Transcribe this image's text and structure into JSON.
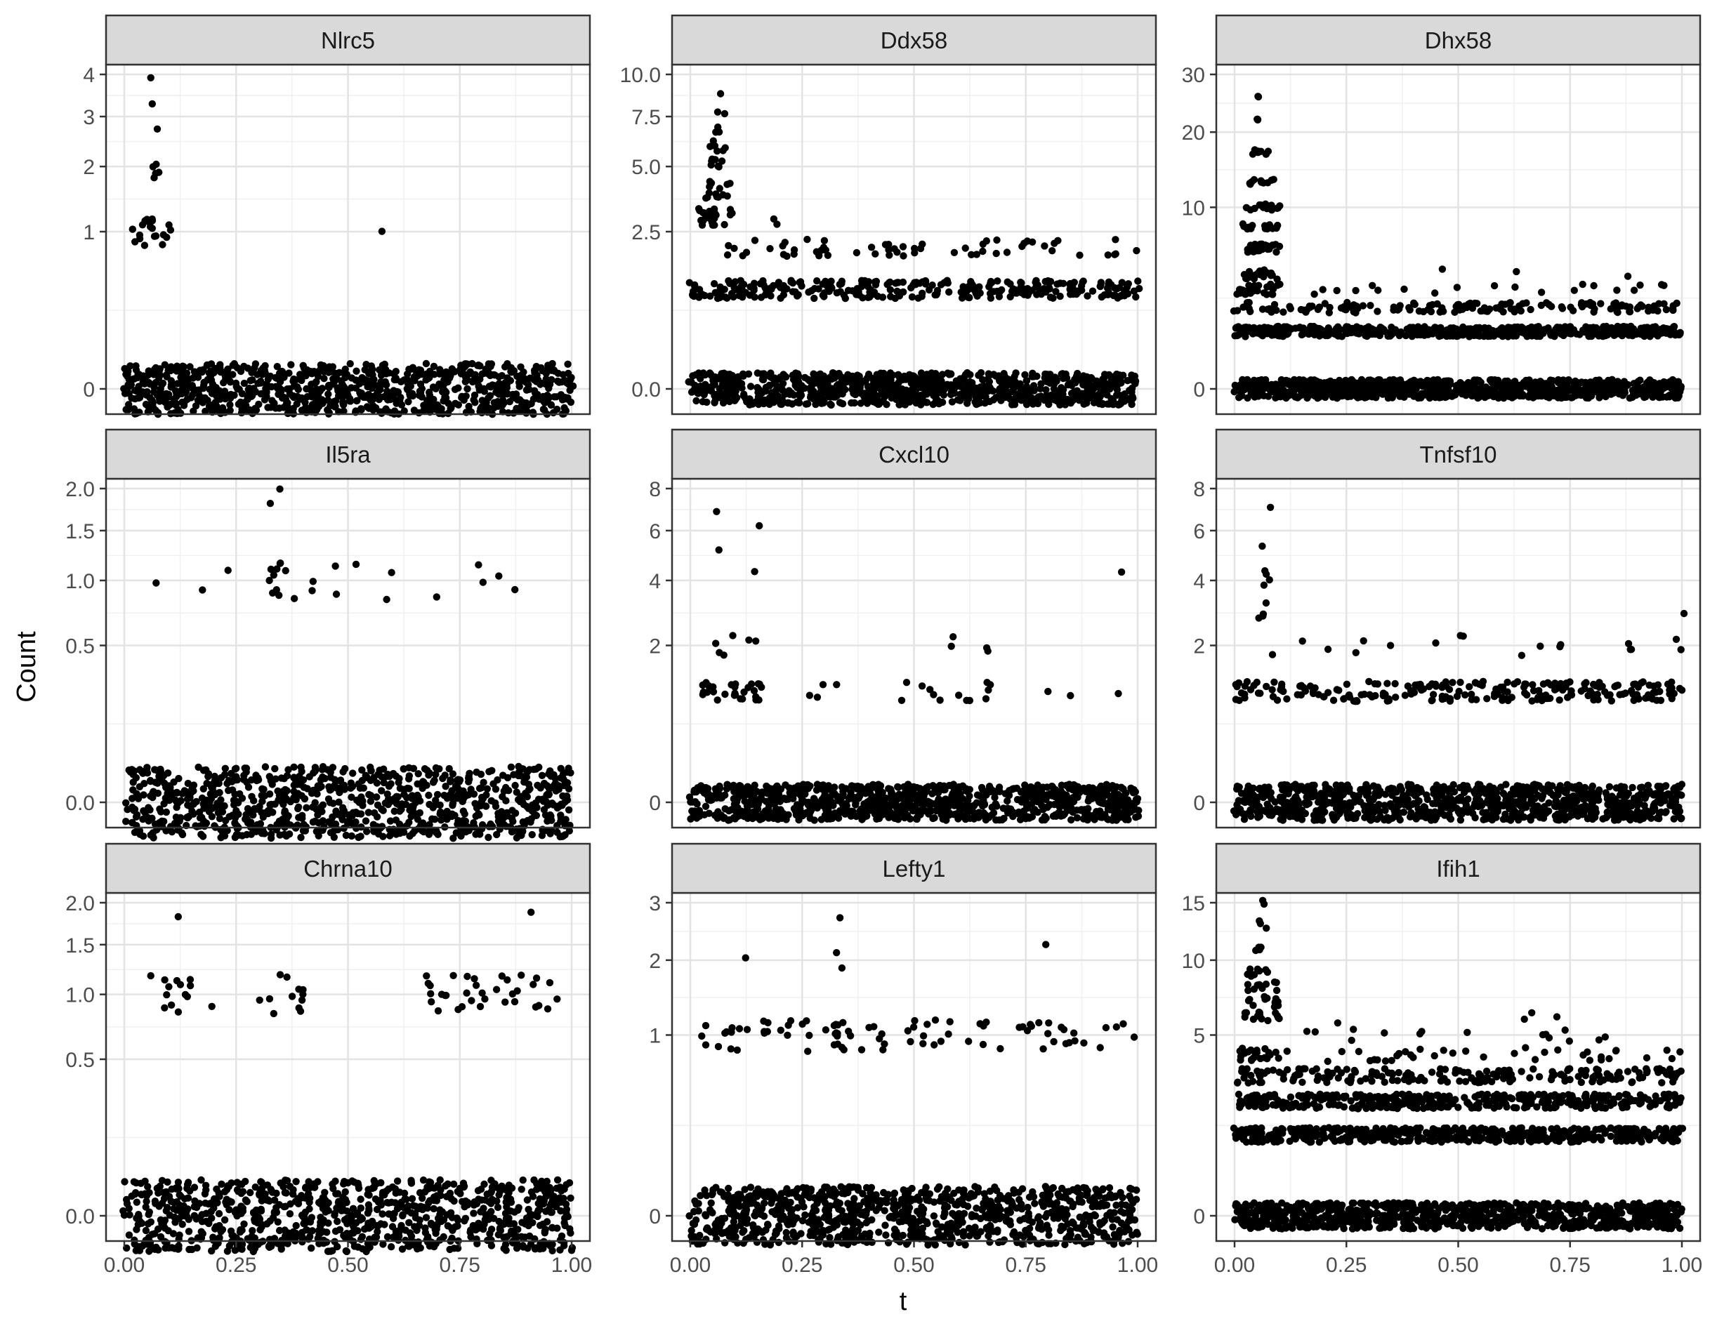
{
  "chart_data": {
    "type": "scatter",
    "xlabel": "t",
    "ylabel": "Count",
    "scale": "sqrt",
    "x_ticks": [
      "0.00",
      "0.25",
      "0.50",
      "0.75",
      "1.00"
    ],
    "x_tick_values": [
      0,
      0.25,
      0.5,
      0.75,
      1
    ],
    "grid": true,
    "panels": [
      {
        "title": "Nlrc5",
        "ylim": [
          0,
          4
        ],
        "y_ticks": [
          {
            "v": 0,
            "t": "0"
          },
          {
            "v": 1,
            "t": "1"
          },
          {
            "v": 2,
            "t": "2"
          },
          {
            "v": 3,
            "t": "3"
          },
          {
            "v": 4,
            "t": "4"
          }
        ],
        "levels": [
          {
            "y": 0,
            "from": 0.0,
            "to": 1.0,
            "n": 900
          },
          {
            "y": 1,
            "from": 0.02,
            "to": 0.1,
            "n": 20
          },
          {
            "y": 2,
            "from": 0.04,
            "to": 0.09,
            "n": 5
          },
          {
            "y": 3,
            "from": 0.06,
            "to": 0.07,
            "n": 2
          },
          {
            "y": 4,
            "from": 0.06,
            "to": 0.065,
            "n": 1
          },
          {
            "y": 1,
            "from": 0.58,
            "to": 0.58,
            "n": 1
          }
        ]
      },
      {
        "title": "Ddx58",
        "ylim": [
          0,
          10
        ],
        "y_ticks": [
          {
            "v": 0,
            "t": "0.0"
          },
          {
            "v": 2.5,
            "t": "2.5"
          },
          {
            "v": 5,
            "t": "5.0"
          },
          {
            "v": 7.5,
            "t": "7.5"
          },
          {
            "v": 10,
            "t": "10.0"
          }
        ],
        "levels": [
          {
            "y": 0,
            "from": 0.0,
            "to": 1.0,
            "n": 900
          },
          {
            "y": 1,
            "from": 0.0,
            "to": 1.0,
            "n": 300
          },
          {
            "y": 2,
            "from": 0.02,
            "to": 1.0,
            "n": 60
          },
          {
            "y": 3,
            "from": 0.02,
            "to": 0.1,
            "n": 25
          },
          {
            "y": 3,
            "from": 0.15,
            "to": 0.2,
            "n": 2
          },
          {
            "y": 4,
            "from": 0.03,
            "to": 0.09,
            "n": 15
          },
          {
            "y": 5,
            "from": 0.04,
            "to": 0.09,
            "n": 8
          },
          {
            "y": 6,
            "from": 0.04,
            "to": 0.09,
            "n": 6
          },
          {
            "y": 7,
            "from": 0.05,
            "to": 0.07,
            "n": 3
          },
          {
            "y": 8,
            "from": 0.06,
            "to": 0.08,
            "n": 2
          },
          {
            "y": 9,
            "from": 0.07,
            "to": 0.08,
            "n": 1
          }
        ]
      },
      {
        "title": "Dhx58",
        "ylim": [
          0,
          30
        ],
        "y_ticks": [
          {
            "v": 0,
            "t": "0"
          },
          {
            "v": 10,
            "t": "10"
          },
          {
            "v": 20,
            "t": "20"
          },
          {
            "v": 30,
            "t": "30"
          }
        ],
        "levels": [
          {
            "y": 0,
            "from": 0.0,
            "to": 1.0,
            "n": 900
          },
          {
            "y": 1,
            "from": 0.0,
            "to": 1.0,
            "n": 500
          },
          {
            "y": 2,
            "from": 0.0,
            "to": 1.0,
            "n": 150
          },
          {
            "y": 3,
            "from": 0.0,
            "to": 0.1,
            "n": 30
          },
          {
            "y": 3,
            "from": 0.17,
            "to": 0.98,
            "n": 20
          },
          {
            "y": 4,
            "from": 0.02,
            "to": 0.1,
            "n": 20
          },
          {
            "y": 4,
            "from": 0.35,
            "to": 0.97,
            "n": 3
          },
          {
            "y": 6,
            "from": 0.02,
            "to": 0.1,
            "n": 30
          },
          {
            "y": 8,
            "from": 0.02,
            "to": 0.1,
            "n": 15
          },
          {
            "y": 10,
            "from": 0.02,
            "to": 0.1,
            "n": 15
          },
          {
            "y": 13,
            "from": 0.03,
            "to": 0.1,
            "n": 10
          },
          {
            "y": 17,
            "from": 0.04,
            "to": 0.08,
            "n": 8
          },
          {
            "y": 22,
            "from": 0.05,
            "to": 0.07,
            "n": 3
          },
          {
            "y": 26,
            "from": 0.05,
            "to": 0.06,
            "n": 2
          }
        ]
      },
      {
        "title": "Il5ra",
        "ylim": [
          0,
          2
        ],
        "y_ticks": [
          {
            "v": 0,
            "t": "0.0"
          },
          {
            "v": 0.5,
            "t": "0.5"
          },
          {
            "v": 1,
            "t": "1.0"
          },
          {
            "v": 1.5,
            "t": "1.5"
          },
          {
            "v": 2,
            "t": "2.0"
          }
        ],
        "levels": [
          {
            "y": 0,
            "from": 0.0,
            "to": 1.0,
            "n": 900
          },
          {
            "y": 1,
            "from": 0.06,
            "to": 0.96,
            "n": 16
          },
          {
            "y": 1,
            "from": 0.32,
            "to": 0.36,
            "n": 10
          },
          {
            "y": 2,
            "from": 0.33,
            "to": 0.35,
            "n": 2
          }
        ]
      },
      {
        "title": "Cxcl10",
        "ylim": [
          0,
          8
        ],
        "y_ticks": [
          {
            "v": 0,
            "t": "0"
          },
          {
            "v": 2,
            "t": "2"
          },
          {
            "v": 4,
            "t": "4"
          },
          {
            "v": 6,
            "t": "6"
          },
          {
            "v": 8,
            "t": "8"
          }
        ],
        "levels": [
          {
            "y": 0,
            "from": 0.0,
            "to": 1.0,
            "n": 900
          },
          {
            "y": 1,
            "from": 0.02,
            "to": 0.16,
            "n": 30
          },
          {
            "y": 1,
            "from": 0.25,
            "to": 0.97,
            "n": 20
          },
          {
            "y": 2,
            "from": 0.05,
            "to": 0.15,
            "n": 6
          },
          {
            "y": 2,
            "from": 0.4,
            "to": 0.67,
            "n": 4
          },
          {
            "y": 4,
            "from": 0.14,
            "to": 0.15,
            "n": 1
          },
          {
            "y": 4,
            "from": 0.96,
            "to": 0.96,
            "n": 1
          },
          {
            "y": 5,
            "from": 0.06,
            "to": 0.06,
            "n": 1
          },
          {
            "y": 6,
            "from": 0.15,
            "to": 0.15,
            "n": 1
          },
          {
            "y": 7,
            "from": 0.06,
            "to": 0.06,
            "n": 1
          }
        ]
      },
      {
        "title": "Tnfsf10",
        "ylim": [
          0,
          8
        ],
        "y_ticks": [
          {
            "v": 0,
            "t": "0"
          },
          {
            "v": 2,
            "t": "2"
          },
          {
            "v": 4,
            "t": "4"
          },
          {
            "v": 6,
            "t": "6"
          },
          {
            "v": 8,
            "t": "8"
          }
        ],
        "levels": [
          {
            "y": 0,
            "from": 0.0,
            "to": 1.0,
            "n": 900
          },
          {
            "y": 1,
            "from": 0.0,
            "to": 1.0,
            "n": 230
          },
          {
            "y": 2,
            "from": 0.0,
            "to": 1.0,
            "n": 18
          },
          {
            "y": 3,
            "from": 0.05,
            "to": 0.08,
            "n": 4
          },
          {
            "y": 3,
            "from": 1.0,
            "to": 1.0,
            "n": 1
          },
          {
            "y": 4,
            "from": 0.05,
            "to": 0.08,
            "n": 4
          },
          {
            "y": 5,
            "from": 0.06,
            "to": 0.06,
            "n": 1
          },
          {
            "y": 7,
            "from": 0.08,
            "to": 0.08,
            "n": 1
          }
        ]
      },
      {
        "title": "Chrna10",
        "ylim": [
          0,
          2
        ],
        "y_ticks": [
          {
            "v": 0,
            "t": "0.0"
          },
          {
            "v": 0.5,
            "t": "0.5"
          },
          {
            "v": 1,
            "t": "1.0"
          },
          {
            "v": 1.5,
            "t": "1.5"
          },
          {
            "v": 2,
            "t": "2.0"
          }
        ],
        "levels": [
          {
            "y": 0,
            "from": 0.0,
            "to": 1.0,
            "n": 900
          },
          {
            "y": 1,
            "from": 0.06,
            "to": 0.2,
            "n": 14
          },
          {
            "y": 1,
            "from": 0.3,
            "to": 0.41,
            "n": 12
          },
          {
            "y": 1,
            "from": 0.67,
            "to": 0.99,
            "n": 35
          },
          {
            "y": 2,
            "from": 0.12,
            "to": 0.12,
            "n": 1
          },
          {
            "y": 2,
            "from": 0.91,
            "to": 0.91,
            "n": 1
          }
        ]
      },
      {
        "title": "Lefty1",
        "ylim": [
          0,
          3
        ],
        "y_ticks": [
          {
            "v": 0,
            "t": "0"
          },
          {
            "v": 1,
            "t": "1"
          },
          {
            "v": 2,
            "t": "2"
          },
          {
            "v": 3,
            "t": "3"
          }
        ],
        "levels": [
          {
            "y": 0,
            "from": 0.0,
            "to": 1.0,
            "n": 900
          },
          {
            "y": 1,
            "from": 0.0,
            "to": 1.0,
            "n": 75
          },
          {
            "y": 1,
            "from": 0.32,
            "to": 0.36,
            "n": 12
          },
          {
            "y": 2,
            "from": 0.12,
            "to": 0.13,
            "n": 1
          },
          {
            "y": 2,
            "from": 0.33,
            "to": 0.35,
            "n": 2
          },
          {
            "y": 2,
            "from": 0.79,
            "to": 0.79,
            "n": 1
          },
          {
            "y": 3,
            "from": 0.33,
            "to": 0.33,
            "n": 1
          }
        ]
      },
      {
        "title": "Ifih1",
        "ylim": [
          0,
          15
        ],
        "y_ticks": [
          {
            "v": 0,
            "t": "0"
          },
          {
            "v": 5,
            "t": "5"
          },
          {
            "v": 10,
            "t": "10"
          },
          {
            "v": 15,
            "t": "15"
          }
        ],
        "levels": [
          {
            "y": 0,
            "from": 0.0,
            "to": 1.0,
            "n": 900
          },
          {
            "y": 1,
            "from": 0.0,
            "to": 1.0,
            "n": 500
          },
          {
            "y": 2,
            "from": 0.0,
            "to": 1.0,
            "n": 400
          },
          {
            "y": 3,
            "from": 0.0,
            "to": 1.0,
            "n": 200
          },
          {
            "y": 4,
            "from": 0.0,
            "to": 1.0,
            "n": 40
          },
          {
            "y": 4,
            "from": 0.01,
            "to": 0.1,
            "n": 20
          },
          {
            "y": 5,
            "from": 0.01,
            "to": 0.9,
            "n": 15
          },
          {
            "y": 6,
            "from": 0.02,
            "to": 0.1,
            "n": 15
          },
          {
            "y": 6,
            "from": 0.19,
            "to": 0.82,
            "n": 4
          },
          {
            "y": 7,
            "from": 0.03,
            "to": 0.1,
            "n": 12
          },
          {
            "y": 8,
            "from": 0.03,
            "to": 0.1,
            "n": 10
          },
          {
            "y": 9,
            "from": 0.03,
            "to": 0.09,
            "n": 8
          },
          {
            "y": 11,
            "from": 0.04,
            "to": 0.08,
            "n": 5
          },
          {
            "y": 13,
            "from": 0.05,
            "to": 0.08,
            "n": 3
          },
          {
            "y": 15,
            "from": 0.06,
            "to": 0.07,
            "n": 2
          }
        ]
      }
    ]
  }
}
